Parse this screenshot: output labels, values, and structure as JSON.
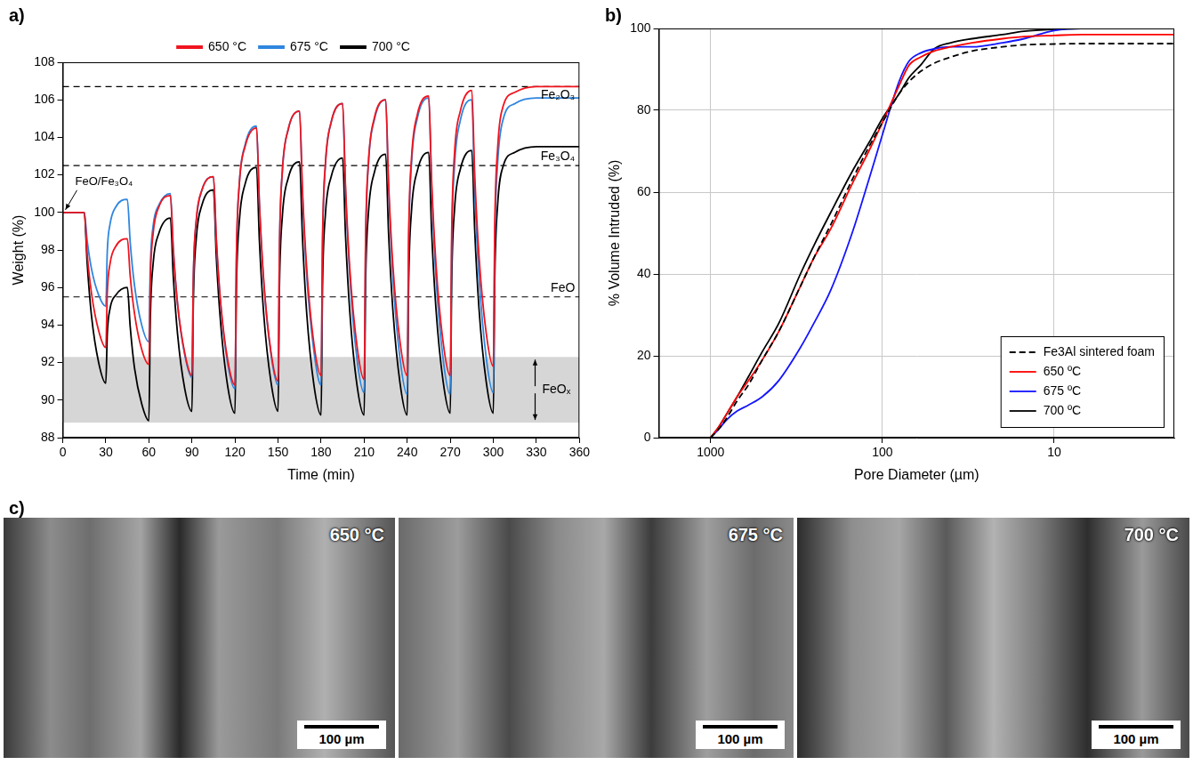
{
  "chart_data": [
    {
      "type": "line",
      "panel_label": "a)",
      "x_label": "Time (min)",
      "y_label": "Weight (%)",
      "xlim": [
        0,
        360
      ],
      "xticks": [
        0,
        30,
        60,
        90,
        120,
        150,
        180,
        210,
        240,
        270,
        300,
        330,
        360
      ],
      "ylim": [
        88,
        108
      ],
      "yticks": [
        88,
        90,
        92,
        94,
        96,
        98,
        100,
        102,
        104,
        106,
        108
      ],
      "grid": false,
      "legend": "top",
      "x": [
        0,
        15,
        17,
        20,
        25,
        30,
        31,
        33,
        37,
        45,
        47,
        50,
        55,
        60,
        61,
        63,
        67,
        75,
        77,
        80,
        85,
        90,
        91,
        93,
        97,
        105,
        107,
        110,
        115,
        120,
        121,
        123,
        127,
        135,
        137,
        140,
        145,
        150,
        151,
        153,
        157,
        165,
        167,
        170,
        175,
        180,
        181,
        183,
        187,
        195,
        197,
        200,
        205,
        210,
        211,
        213,
        217,
        225,
        227,
        230,
        235,
        240,
        241,
        243,
        247,
        255,
        257,
        260,
        265,
        270,
        271,
        273,
        277,
        285,
        287,
        290,
        295,
        300,
        301,
        303,
        307,
        315,
        330,
        345,
        360
      ],
      "series": [
        {
          "name": "650 °C",
          "color": "#f0141e",
          "values": [
            100,
            100,
            97.8,
            95.7,
            93.7,
            92.8,
            95.7,
            97.3,
            98.2,
            98.6,
            96.6,
            94.6,
            92.7,
            91.9,
            96.4,
            98.9,
            100.3,
            100.9,
            98.0,
            95.1,
            92.5,
            91.3,
            96.6,
            99.6,
            101.2,
            101.9,
            98.6,
            95.2,
            92.1,
            90.8,
            97.7,
            101.5,
            103.5,
            104.5,
            100.5,
            96.4,
            92.6,
            91.0,
            98.2,
            102.2,
            104.4,
            105.4,
            101.2,
            97.0,
            93.0,
            91.3,
            98.6,
            102.6,
            104.8,
            105.8,
            101.4,
            97.0,
            92.9,
            91.1,
            98.6,
            102.7,
            105.0,
            106.0,
            101.6,
            97.2,
            93.1,
            91.3,
            98.8,
            102.9,
            105.2,
            106.2,
            101.7,
            97.3,
            93.1,
            91.3,
            98.9,
            103.2,
            105.4,
            106.5,
            102.1,
            97.7,
            93.6,
            91.8,
            99.3,
            103.4,
            105.7,
            106.4,
            106.7,
            106.7,
            106.7
          ]
        },
        {
          "name": "675 °C",
          "color": "#2e86de",
          "values": [
            100,
            100,
            98.5,
            97.0,
            95.6,
            95.0,
            97.9,
            99.4,
            100.3,
            100.7,
            98.4,
            96.1,
            94.0,
            93.1,
            97.1,
            99.3,
            100.4,
            101.0,
            98.1,
            95.1,
            92.4,
            91.2,
            96.6,
            99.5,
            101.2,
            101.9,
            98.5,
            95.1,
            91.9,
            90.6,
            97.6,
            101.5,
            103.6,
            104.6,
            100.5,
            96.3,
            92.5,
            90.8,
            98.1,
            102.2,
            104.4,
            105.4,
            101.0,
            96.6,
            92.6,
            90.8,
            98.3,
            102.5,
            104.8,
            105.8,
            101.2,
            96.6,
            92.2,
            90.4,
            98.2,
            102.6,
            104.9,
            106.0,
            101.3,
            96.6,
            92.2,
            90.3,
            98.2,
            102.6,
            105.0,
            106.1,
            101.4,
            96.6,
            92.2,
            90.3,
            98.2,
            102.5,
            104.9,
            106.0,
            101.3,
            96.6,
            92.3,
            90.4,
            98.3,
            102.6,
            105.0,
            105.8,
            106.1,
            106.1,
            106.1
          ]
        },
        {
          "name": "700 °C",
          "color": "#000000",
          "values": [
            100,
            100,
            97.3,
            94.5,
            92.0,
            90.9,
            93.5,
            94.9,
            95.6,
            96.0,
            93.9,
            91.7,
            89.8,
            88.9,
            94.3,
            97.3,
            98.9,
            99.7,
            96.6,
            93.5,
            90.6,
            89.4,
            95.3,
            98.6,
            100.4,
            101.2,
            97.6,
            94.1,
            90.7,
            89.3,
            95.9,
            99.5,
            101.5,
            102.4,
            98.5,
            94.6,
            91.0,
            89.4,
            96.1,
            99.8,
            101.8,
            102.7,
            98.7,
            94.6,
            90.8,
            89.2,
            96.1,
            99.9,
            101.9,
            102.9,
            98.8,
            94.7,
            90.8,
            89.2,
            96.2,
            100.0,
            102.1,
            103.1,
            98.9,
            94.8,
            90.9,
            89.2,
            96.2,
            100.1,
            102.2,
            103.2,
            99.0,
            94.9,
            91.0,
            89.3,
            96.3,
            100.2,
            102.3,
            103.3,
            99.1,
            94.9,
            91.0,
            89.3,
            96.4,
            100.4,
            102.5,
            103.2,
            103.5,
            103.5,
            103.5
          ]
        }
      ],
      "reference_lines": [
        {
          "label": "Fe₂O₃",
          "value": 106.7
        },
        {
          "label": "Fe₃O₄",
          "value": 102.5
        },
        {
          "label": "FeO",
          "value": 95.5
        }
      ],
      "bands": [
        {
          "label": "FeOₓ",
          "from": 88.8,
          "to": 92.3
        }
      ],
      "annotations": [
        {
          "text": "FeO/Fe₃O₄",
          "x": 0,
          "y": 100
        }
      ]
    },
    {
      "type": "line",
      "panel_label": "b)",
      "x_label": "Pore Diameter (µm)",
      "y_label": "% Volume Intruded (%)",
      "log": "x",
      "xlim": [
        2000,
        2
      ],
      "xticks": [
        1000,
        100,
        10
      ],
      "ylim": [
        0,
        100
      ],
      "yticks": [
        0,
        20,
        40,
        60,
        80,
        100
      ],
      "grid": true,
      "legend": "lower right",
      "x": [
        1000,
        900,
        800,
        700,
        600,
        500,
        400,
        300,
        250,
        200,
        150,
        120,
        100,
        80,
        70,
        60,
        50,
        40,
        30,
        20,
        15,
        10,
        7,
        5,
        3,
        2
      ],
      "series": [
        {
          "name": "Fe3Al sintered foam",
          "color": "#000000",
          "line_style": "dashed",
          "values": [
            0,
            2,
            5,
            9,
            13,
            19,
            26,
            37,
            44,
            52,
            63,
            71,
            77,
            84,
            87,
            89.5,
            91.5,
            93,
            94.5,
            95.5,
            96,
            96.2,
            96.3,
            96.3,
            96.3,
            96.3
          ]
        },
        {
          "name": "650 ºC",
          "color": "#ff0000",
          "line_style": "solid",
          "values": [
            0,
            2.5,
            6,
            10,
            14,
            19,
            26,
            37,
            44,
            51,
            62,
            70,
            77,
            86,
            91,
            93,
            94.5,
            95.5,
            96.5,
            97.5,
            98,
            98.3,
            98.5,
            98.5,
            98.5,
            98.5
          ]
        },
        {
          "name": "675 ºC",
          "color": "#1414ff",
          "line_style": "solid",
          "values": [
            0,
            2,
            4.5,
            6.5,
            8,
            10,
            14,
            22,
            28,
            36,
            50,
            63,
            74,
            87,
            92,
            94,
            95,
            95.5,
            95.5,
            96.5,
            97.5,
            99.5,
            100,
            100,
            100,
            100
          ]
        },
        {
          "name": "700 ºC",
          "color": "#000000",
          "line_style": "solid",
          "values": [
            0,
            2.5,
            6,
            10,
            15,
            21,
            28,
            40,
            47,
            55,
            65,
            72,
            78,
            84,
            88,
            91,
            95,
            96.5,
            97.5,
            98.5,
            99.3,
            99.8,
            100,
            100,
            100,
            100
          ]
        }
      ]
    }
  ],
  "panel_c": {
    "panel_label": "c)",
    "images": [
      {
        "title": "650 °C",
        "scale_bar": "100 µm"
      },
      {
        "title": "675 °C",
        "scale_bar": "100 µm"
      },
      {
        "title": "700 °C",
        "scale_bar": "100 µm"
      }
    ]
  }
}
